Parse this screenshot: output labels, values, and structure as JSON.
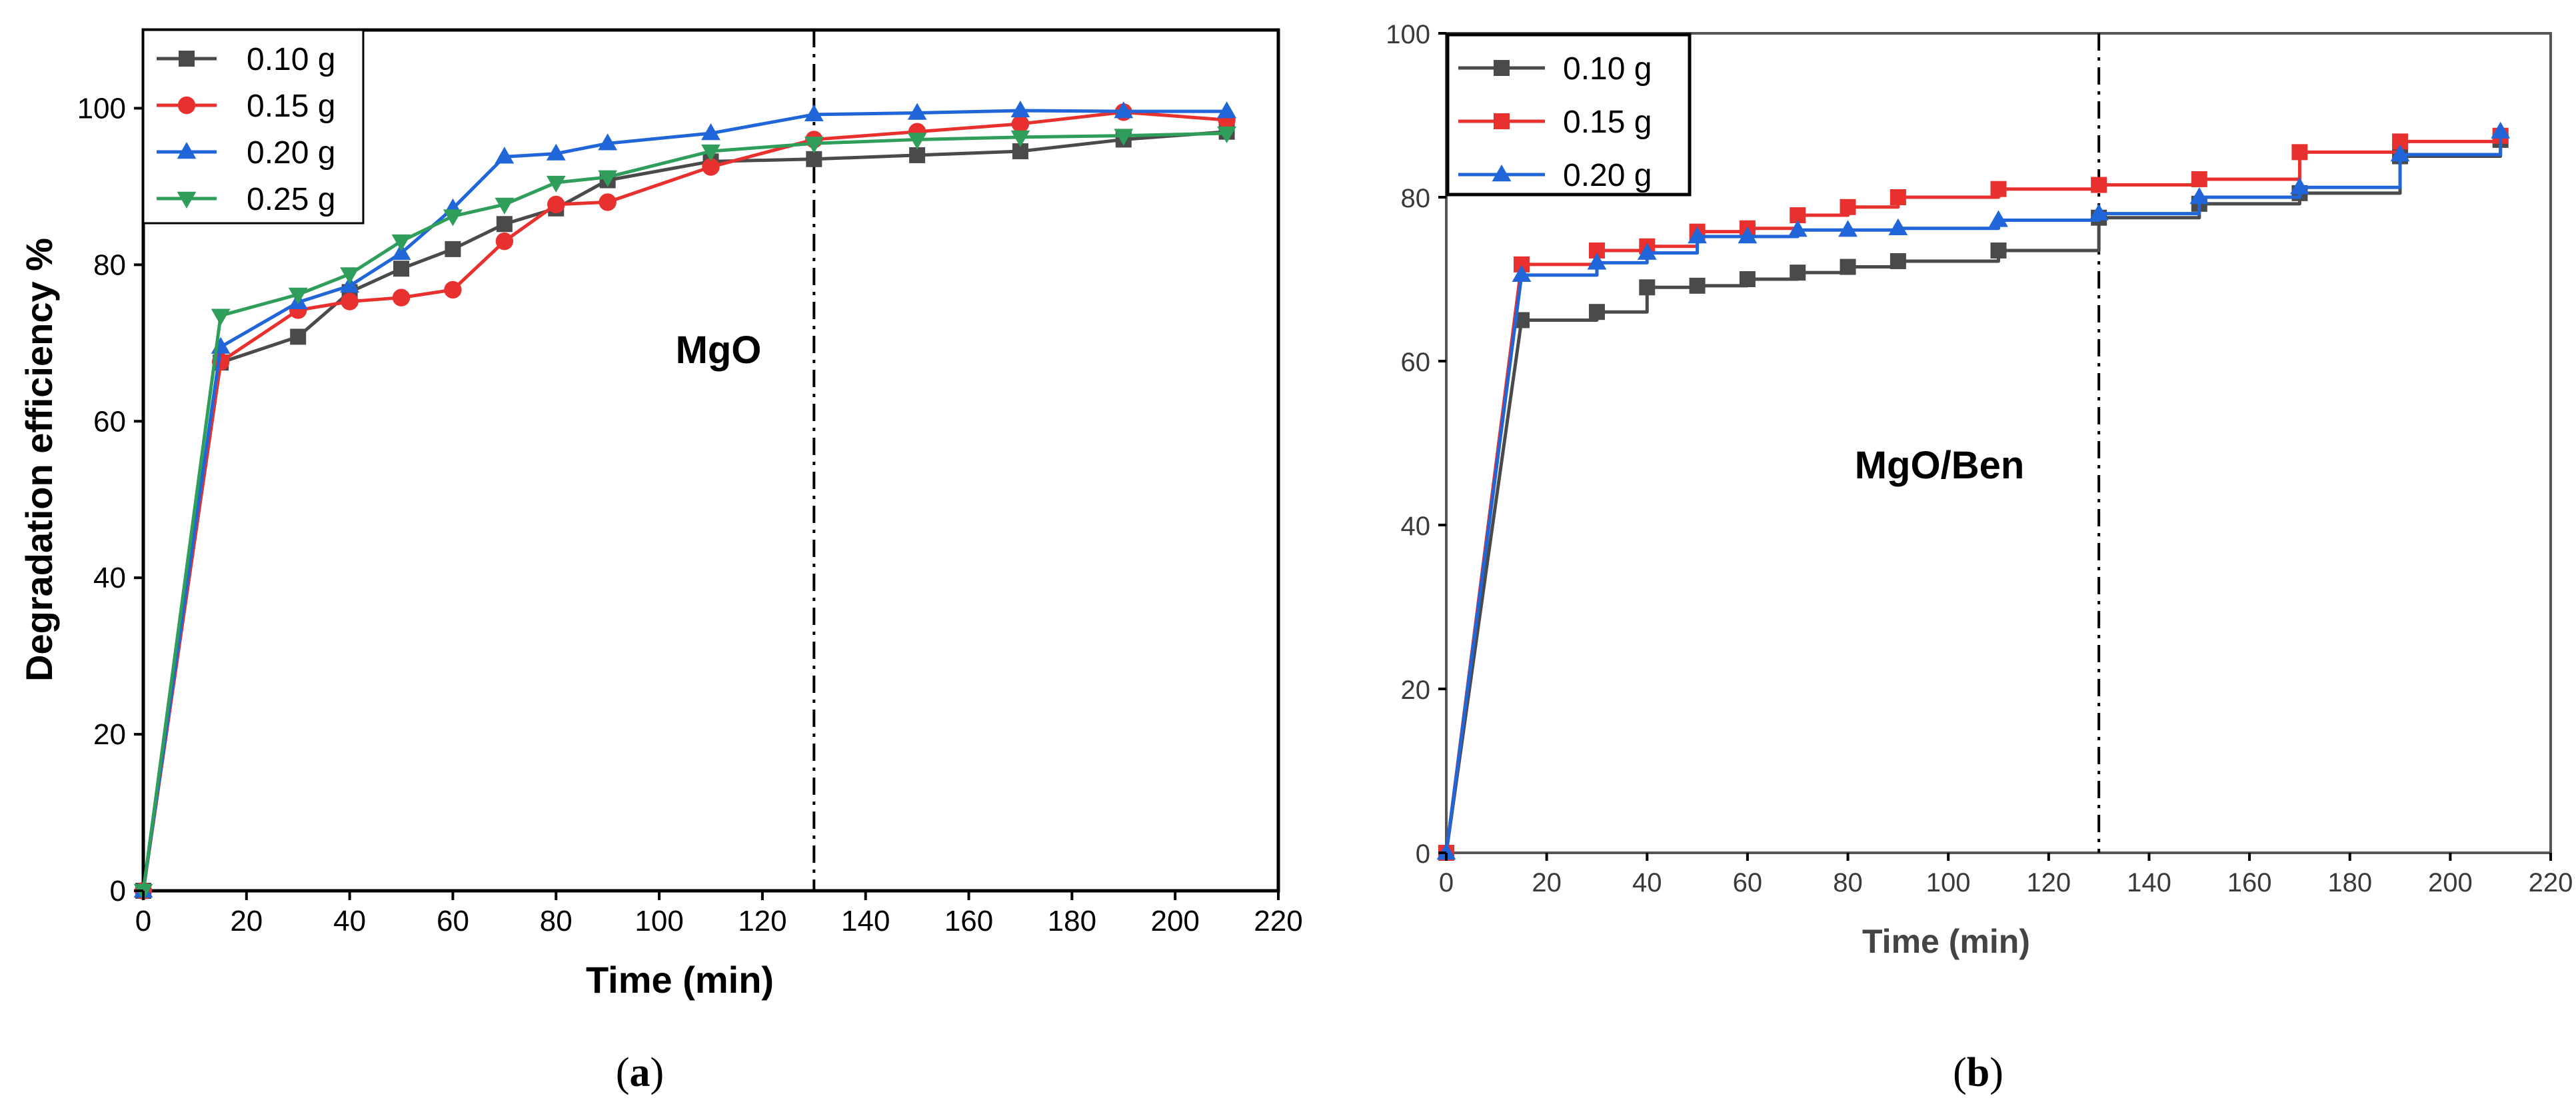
{
  "chart_data": [
    {
      "type": "line",
      "caption": "(a)",
      "caption_letter": "a",
      "annotation": "MgO",
      "xlabel": "Time (min)",
      "ylabel": "Degradation efficiency %",
      "xlim": [
        0,
        220
      ],
      "ylim": [
        0,
        110
      ],
      "xticks": [
        0,
        20,
        40,
        60,
        80,
        100,
        120,
        140,
        160,
        180,
        200,
        220
      ],
      "yticks": [
        0,
        20,
        40,
        60,
        80,
        100
      ],
      "vline_x": 130,
      "legend_position": "top-left",
      "series": [
        {
          "name": "0.10 g",
          "color": "#4a4a4a",
          "marker": "square",
          "x": [
            0,
            15,
            30,
            40,
            50,
            60,
            70,
            80,
            90,
            110,
            130,
            150,
            170,
            190,
            210
          ],
          "values": [
            0,
            67.5,
            70.8,
            76.5,
            79.5,
            82,
            85.2,
            87.2,
            90.8,
            93.2,
            93.5,
            94,
            94.5,
            96,
            97
          ]
        },
        {
          "name": "0.15 g",
          "color": "#e8312f",
          "marker": "circle",
          "x": [
            0,
            15,
            30,
            40,
            50,
            60,
            70,
            80,
            90,
            110,
            130,
            150,
            170,
            190,
            210
          ],
          "values": [
            0,
            67.6,
            74.2,
            75.3,
            75.8,
            76.8,
            83,
            87.7,
            88,
            92.5,
            96,
            97,
            98,
            99.5,
            98.5
          ]
        },
        {
          "name": "0.20 g",
          "color": "#2066d8",
          "marker": "triangle-up",
          "x": [
            0,
            15,
            30,
            40,
            50,
            60,
            70,
            80,
            90,
            110,
            130,
            150,
            170,
            190,
            210
          ],
          "values": [
            0,
            69.5,
            75.2,
            77.3,
            81.5,
            87.2,
            93.8,
            94.2,
            95.5,
            96.8,
            99.2,
            99.4,
            99.7,
            99.6,
            99.6
          ]
        },
        {
          "name": "0.25 g",
          "color": "#2e9e5a",
          "marker": "triangle-down",
          "x": [
            0,
            15,
            30,
            40,
            50,
            60,
            70,
            80,
            90,
            110,
            130,
            150,
            170,
            190,
            210
          ],
          "values": [
            0,
            73.5,
            76.2,
            78.8,
            83,
            86.2,
            87.7,
            90.5,
            91.2,
            94.5,
            95.5,
            96,
            96.3,
            96.5,
            96.8
          ]
        }
      ]
    },
    {
      "type": "line",
      "caption": "(b)",
      "caption_letter": "b",
      "annotation": "MgO/Ben",
      "xlabel": "Time (min)",
      "ylabel": "",
      "xlim": [
        0,
        220
      ],
      "ylim": [
        0,
        100
      ],
      "xticks": [
        0,
        20,
        40,
        60,
        80,
        100,
        120,
        140,
        160,
        180,
        200,
        220
      ],
      "yticks": [
        0,
        20,
        40,
        60,
        80,
        100
      ],
      "vline_x": 130,
      "legend_position": "top-left",
      "series": [
        {
          "name": "0.10 g",
          "color": "#4a4a4a",
          "marker": "square",
          "x": [
            0,
            15,
            30,
            40,
            50,
            60,
            70,
            80,
            90,
            110,
            130,
            150,
            170,
            190,
            210
          ],
          "values": [
            0,
            65,
            66,
            69,
            69.2,
            70,
            70.8,
            71.5,
            72.2,
            73.5,
            77.5,
            79.2,
            80.5,
            85,
            87
          ]
        },
        {
          "name": "0.15 g",
          "color": "#e8312f",
          "marker": "square",
          "x": [
            0,
            15,
            30,
            40,
            50,
            60,
            70,
            80,
            90,
            110,
            130,
            150,
            170,
            190,
            210
          ],
          "values": [
            0,
            71.8,
            73.5,
            74,
            75.8,
            76.2,
            77.8,
            78.8,
            80,
            81,
            81.5,
            82.2,
            85.5,
            86.8,
            87.5
          ]
        },
        {
          "name": "0.20 g",
          "color": "#2066d8",
          "marker": "triangle-up",
          "x": [
            0,
            15,
            30,
            40,
            50,
            60,
            70,
            80,
            90,
            110,
            130,
            150,
            170,
            190,
            210
          ],
          "values": [
            0,
            70.5,
            72,
            73.2,
            75.2,
            75.2,
            76,
            76,
            76.2,
            77.2,
            78,
            80,
            81.2,
            85.2,
            88
          ]
        }
      ]
    }
  ]
}
